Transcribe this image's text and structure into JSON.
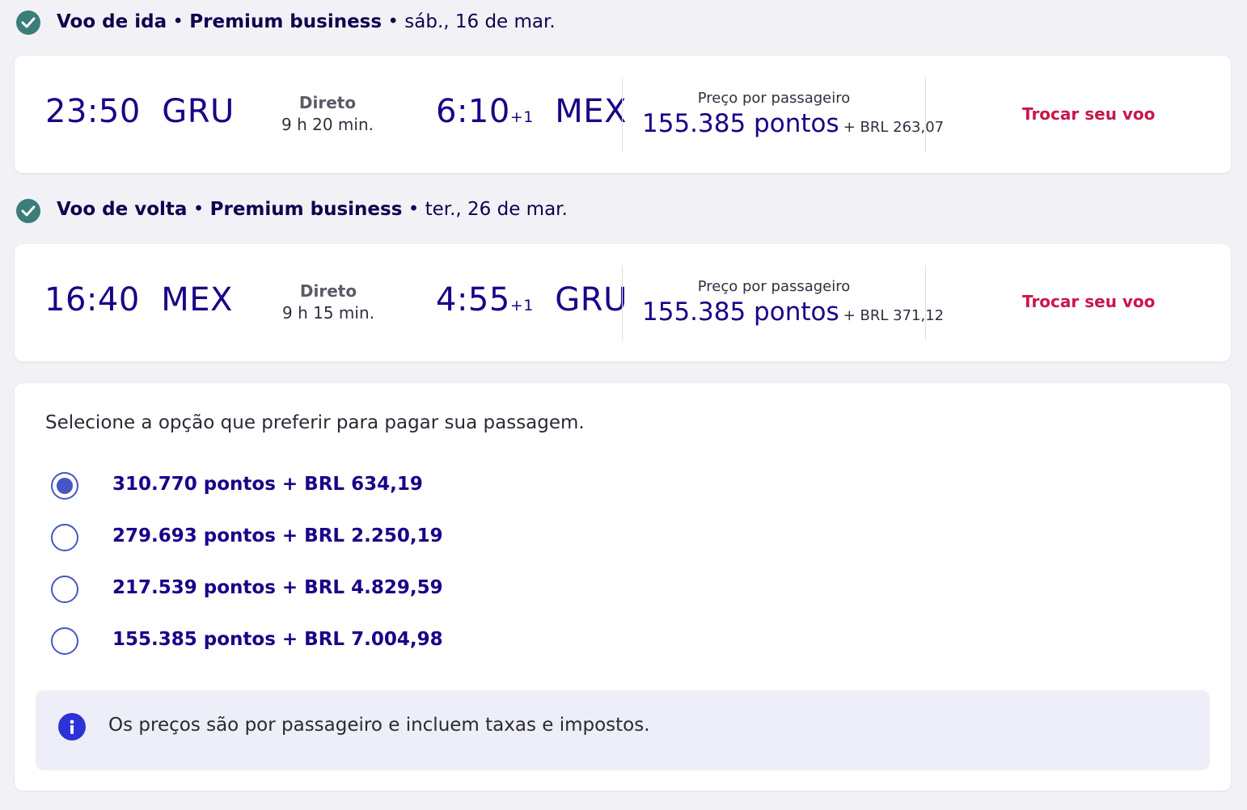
{
  "outbound": {
    "header": {
      "label": "Voo de ida",
      "cabin": "Premium business",
      "date": "sáb., 16 de mar."
    },
    "departure_time": "23:50",
    "departure_airport": "GRU",
    "stops": "Direto",
    "duration": "9 h 20 min.",
    "arrival_time": "6:10",
    "day_offset": "+1",
    "arrival_airport": "MEX",
    "price_label": "Preço por passageiro",
    "price_points": "155.385 pontos",
    "price_brl": "+ BRL 263,07",
    "change_label": "Trocar seu voo"
  },
  "return": {
    "header": {
      "label": "Voo de volta",
      "cabin": "Premium business",
      "date": "ter., 26 de mar."
    },
    "departure_time": "16:40",
    "departure_airport": "MEX",
    "stops": "Direto",
    "duration": "9 h 15 min.",
    "arrival_time": "4:55",
    "day_offset": "+1",
    "arrival_airport": "GRU",
    "price_label": "Preço por passageiro",
    "price_points": "155.385 pontos",
    "price_brl": "+ BRL 371,12",
    "change_label": "Trocar seu voo"
  },
  "payment": {
    "intro": "Selecione a opção que preferir para pagar sua passagem.",
    "options": [
      {
        "label": "310.770 pontos + BRL 634,19",
        "selected": true
      },
      {
        "label": "279.693 pontos + BRL 2.250,19",
        "selected": false
      },
      {
        "label": "217.539 pontos + BRL 4.829,59",
        "selected": false
      },
      {
        "label": "155.385 pontos + BRL 7.004,98",
        "selected": false
      }
    ],
    "info": "Os preços são por passageiro e incluem taxas e impostos."
  },
  "colors": {
    "primary_text": "#1b0088",
    "check_green": "#3b7d7a",
    "link_red": "#c8174b",
    "radio_blue": "#4655c8",
    "info_blue": "#2c32d8"
  }
}
